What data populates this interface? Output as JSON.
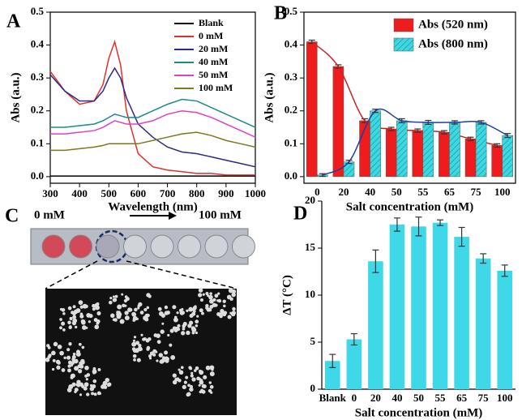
{
  "chart_data": [
    {
      "type": "line",
      "panel": "A",
      "x_label": "Wavelength (nm)",
      "y_label": "Abs (a.u.)",
      "x": [
        300,
        350,
        400,
        450,
        480,
        500,
        520,
        540,
        560,
        600,
        650,
        700,
        750,
        800,
        850,
        900,
        950,
        1000
      ],
      "series": [
        {
          "name": "Blank",
          "color": "#000000",
          "values": [
            0.002,
            0.002,
            0.002,
            0.002,
            0.002,
            0.002,
            0.002,
            0.002,
            0.002,
            0.002,
            0.002,
            0.002,
            0.002,
            0.002,
            0.002,
            0.002,
            0.002,
            0.002
          ]
        },
        {
          "name": "0 mM",
          "color": "#e0302a",
          "values": [
            0.32,
            0.26,
            0.22,
            0.23,
            0.28,
            0.36,
            0.41,
            0.34,
            0.2,
            0.07,
            0.03,
            0.02,
            0.015,
            0.01,
            0.01,
            0.005,
            0.005,
            0.005
          ]
        },
        {
          "name": "20 mM",
          "color": "#2a2a8a",
          "values": [
            0.31,
            0.26,
            0.23,
            0.23,
            0.26,
            0.3,
            0.33,
            0.3,
            0.24,
            0.16,
            0.12,
            0.09,
            0.075,
            0.07,
            0.06,
            0.05,
            0.04,
            0.03
          ]
        },
        {
          "name": "40 mM",
          "color": "#1a8a8a",
          "values": [
            0.15,
            0.15,
            0.155,
            0.16,
            0.17,
            0.18,
            0.19,
            0.185,
            0.18,
            0.18,
            0.2,
            0.22,
            0.235,
            0.23,
            0.21,
            0.19,
            0.17,
            0.15
          ]
        },
        {
          "name": "50 mM",
          "color": "#e040c8",
          "values": [
            0.13,
            0.13,
            0.135,
            0.14,
            0.15,
            0.16,
            0.17,
            0.165,
            0.16,
            0.16,
            0.17,
            0.19,
            0.2,
            0.195,
            0.18,
            0.16,
            0.14,
            0.12
          ]
        },
        {
          "name": "100 mM",
          "color": "#7a7a20",
          "values": [
            0.08,
            0.08,
            0.085,
            0.09,
            0.095,
            0.1,
            0.1,
            0.1,
            0.1,
            0.1,
            0.11,
            0.12,
            0.13,
            0.135,
            0.125,
            0.11,
            0.1,
            0.09
          ]
        }
      ],
      "xlim": [
        300,
        1000
      ],
      "xticks": [
        300,
        400,
        500,
        600,
        700,
        800,
        900,
        1000
      ],
      "ylim": [
        -0.02,
        0.5
      ],
      "yticks": [
        {
          "value": 0,
          "label": "0.0"
        },
        0.1,
        0.2,
        0.3,
        0.4,
        0.5
      ],
      "legend": "upper right"
    },
    {
      "type": "bar",
      "panel": "B",
      "x_label": "Salt concentration (mM)",
      "y_label": "Abs (a.u.)",
      "categories": [
        "0",
        "20",
        "40",
        "50",
        "55",
        "65",
        "75",
        "100"
      ],
      "series": [
        {
          "name": "Abs (520 nm)",
          "color": "#ee1c1c",
          "line_color": "#cc2222",
          "values": [
            0.41,
            0.335,
            0.17,
            0.145,
            0.14,
            0.135,
            0.115,
            0.095
          ],
          "errors": [
            0.005,
            0.005,
            0.006,
            0.005,
            0.005,
            0.005,
            0.005,
            0.005
          ]
        },
        {
          "name": "Abs (800 nm)",
          "color": "#3fd8e0",
          "line_color": "#1f3fa0",
          "values": [
            0.005,
            0.045,
            0.2,
            0.17,
            0.165,
            0.165,
            0.165,
            0.125
          ],
          "errors": [
            0.004,
            0.005,
            0.005,
            0.006,
            0.006,
            0.005,
            0.005,
            0.006
          ]
        }
      ],
      "ylim": [
        -0.02,
        0.5
      ],
      "yticks": [
        {
          "value": 0,
          "label": "0.0"
        },
        0.1,
        0.2,
        0.3,
        0.4,
        0.5
      ],
      "fit_lines": true,
      "legend": "upper right"
    },
    {
      "type": "bar",
      "panel": "D",
      "x_label": "Salt concentration (mM)",
      "y_label": "ΔT (°C)",
      "categories": [
        "Blank",
        "0",
        "20",
        "40",
        "50",
        "55",
        "65",
        "75",
        "100"
      ],
      "series": [
        {
          "color": "#3fd8e8",
          "values": [
            3,
            5.3,
            13.6,
            17.5,
            17.3,
            17.7,
            16.2,
            13.9,
            12.6
          ],
          "errors": [
            0.7,
            0.6,
            1.2,
            0.7,
            1.0,
            0.3,
            1.0,
            0.5,
            0.6
          ]
        }
      ],
      "ylim": [
        0,
        20
      ],
      "yticks": [
        0,
        5,
        10,
        15,
        20
      ]
    }
  ],
  "panel_c": {
    "letter": "C",
    "left_label": "0 mM",
    "right_label": "100 mM"
  }
}
